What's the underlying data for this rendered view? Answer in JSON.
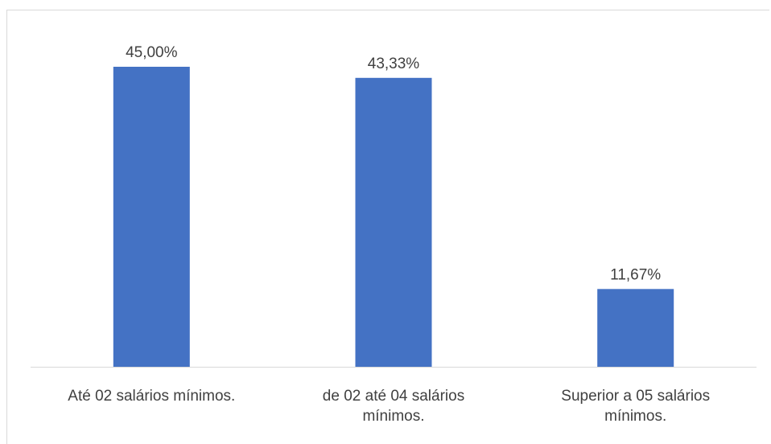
{
  "chart_data": {
    "type": "bar",
    "title": "",
    "xlabel": "",
    "ylabel": "",
    "categories": [
      [
        "Até 02 salários mínimos."
      ],
      [
        "de 02 até 04 salários",
        "mínimos."
      ],
      [
        "Superior a 05 salários",
        "mínimos."
      ]
    ],
    "values": [
      45.0,
      43.33,
      11.67
    ],
    "data_labels": [
      "45,00%",
      "43,33%",
      "11,67%"
    ],
    "ylim": [
      0,
      50
    ],
    "grid": false,
    "legend": "none",
    "colors": {
      "bar": "#4472C4",
      "axis": "#d9d9d9",
      "text": "#404040"
    }
  }
}
